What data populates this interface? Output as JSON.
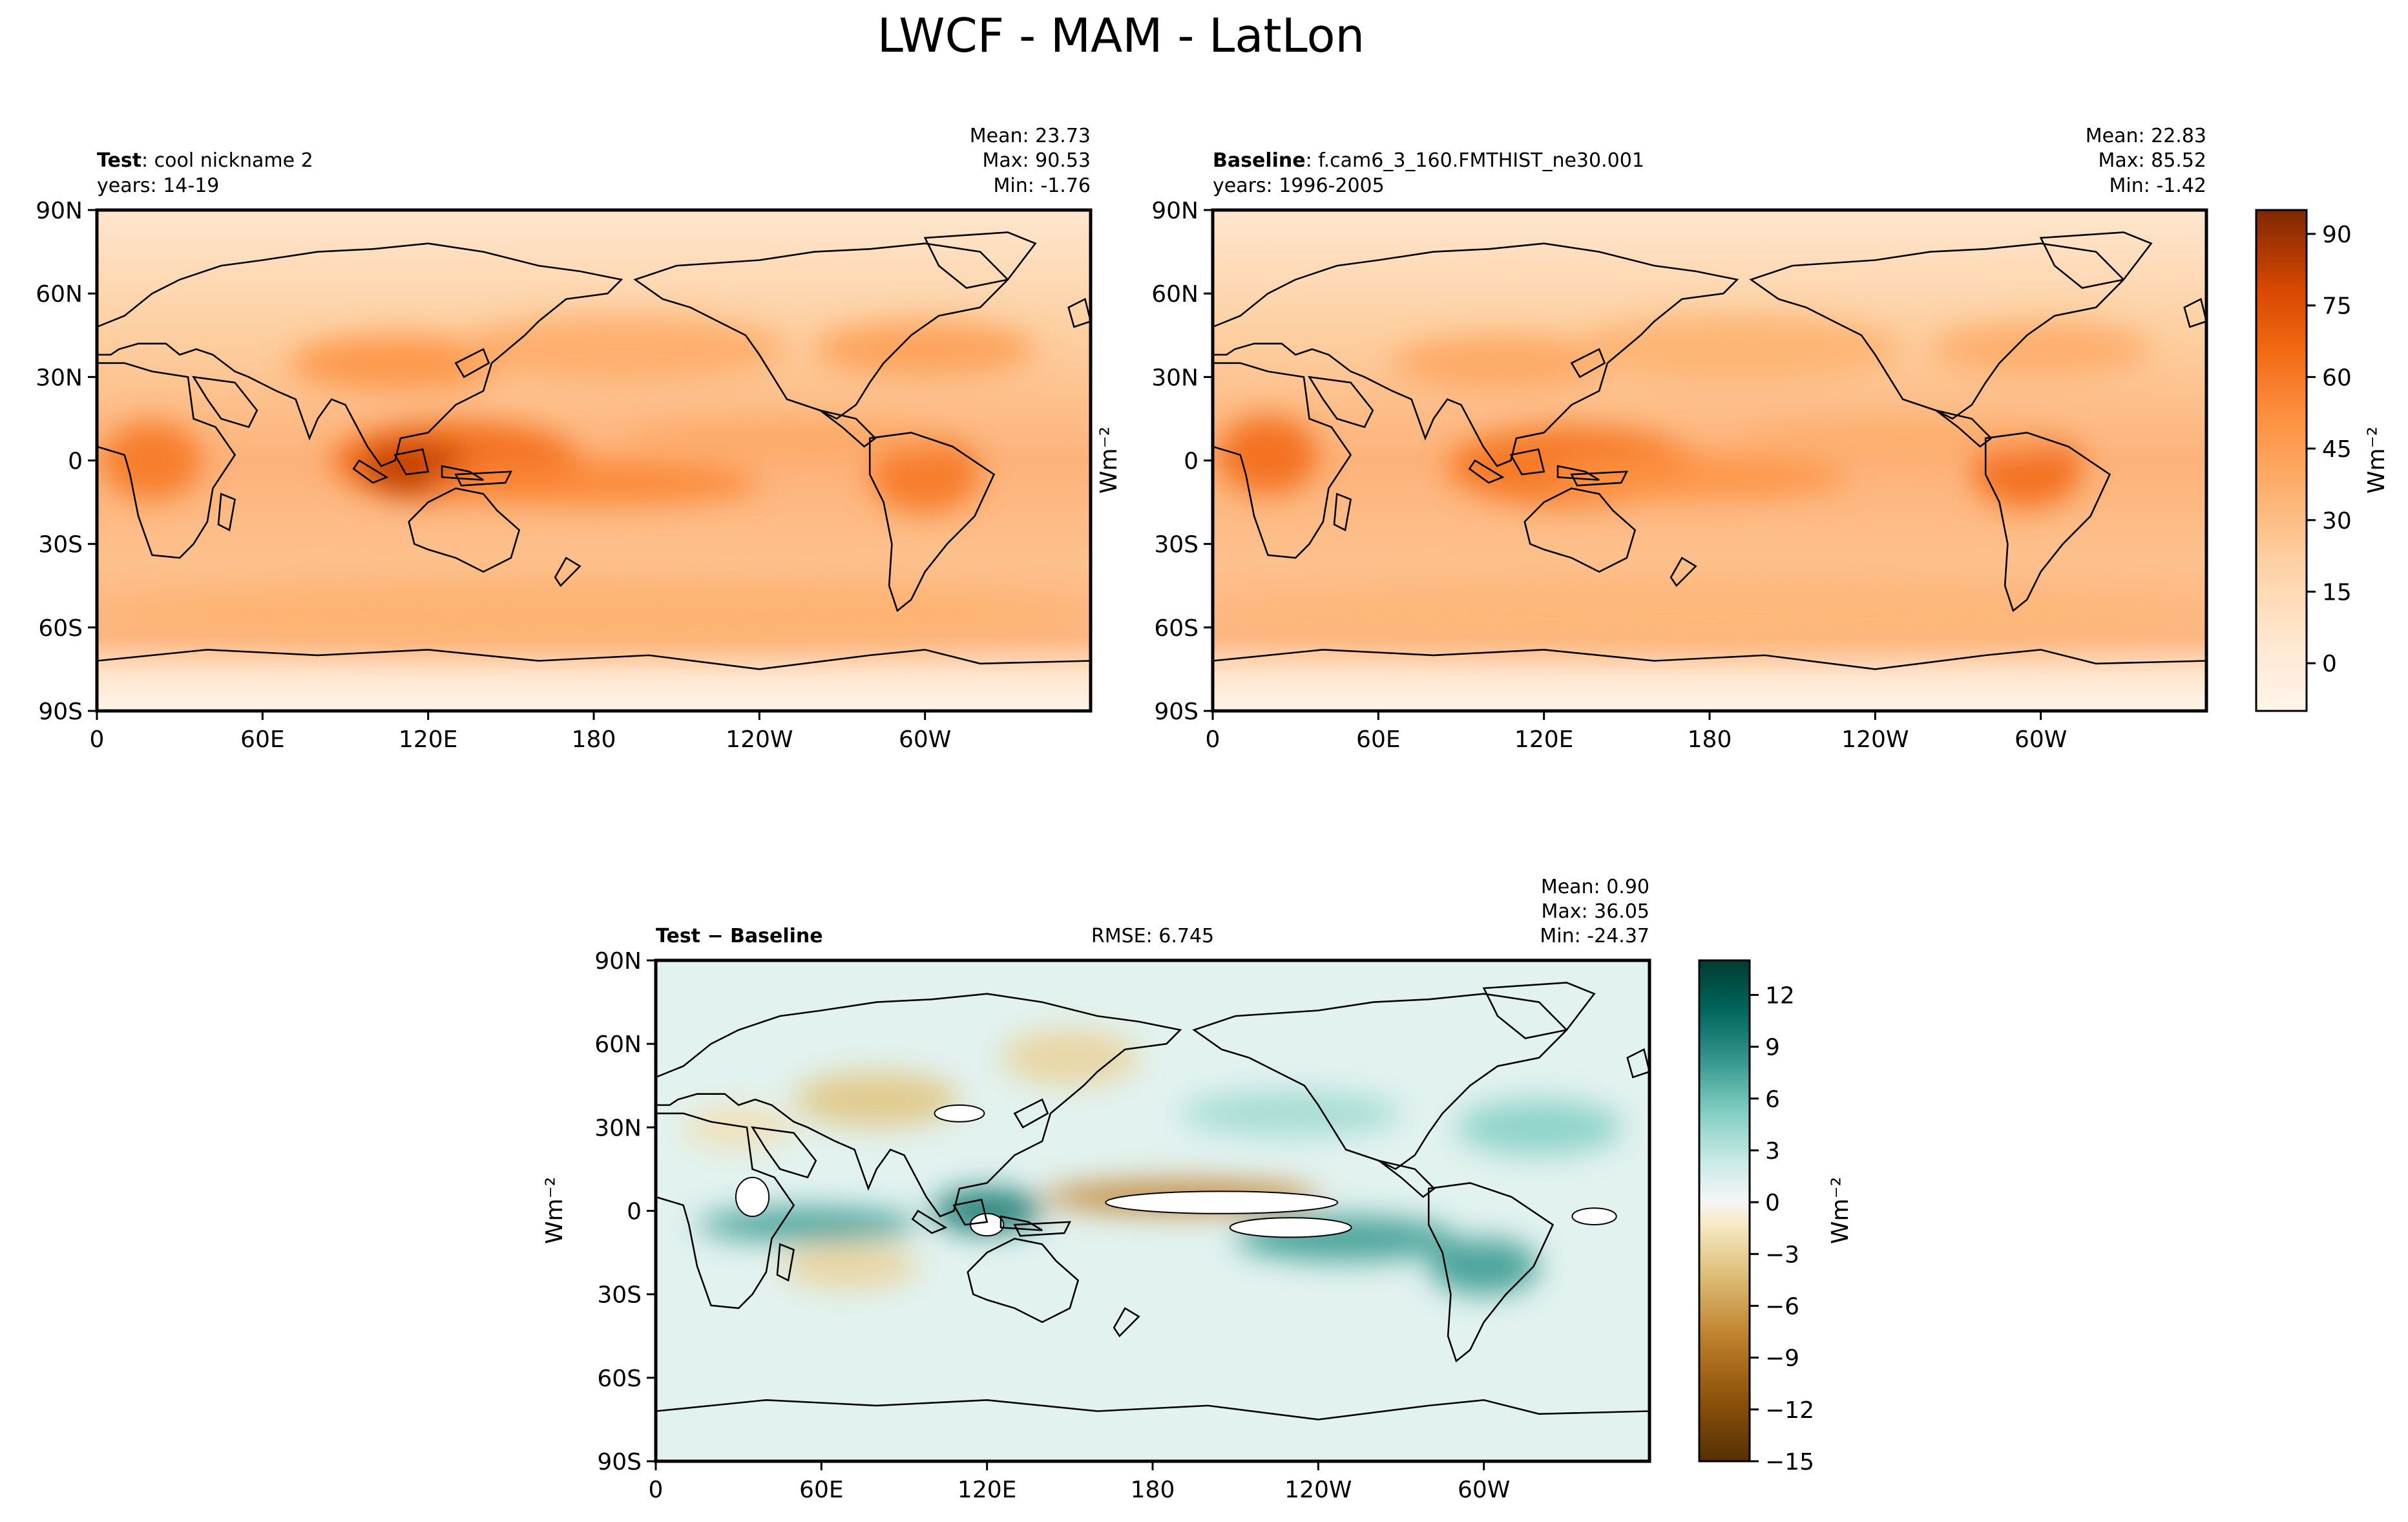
{
  "figure": {
    "title": "LWCF - MAM - LatLon"
  },
  "colors": {
    "orange_scale": [
      "#fff5eb",
      "#fee6ce",
      "#fdd0a2",
      "#fdae6b",
      "#fd8d3c",
      "#f16913",
      "#d94801",
      "#a63603",
      "#7f2704"
    ],
    "brbg_scale": [
      "#543005",
      "#8c510a",
      "#bf812d",
      "#dfc27d",
      "#f6e8c3",
      "#f5f5f5",
      "#c7eae5",
      "#80cdc1",
      "#35978f",
      "#01665e",
      "#003c30"
    ],
    "land_outline": "#000000",
    "frame": "#000000"
  },
  "chart_data": [
    {
      "type": "heatmap",
      "panel": "test",
      "label_bold": "Test",
      "label_rest": ": cool nickname 2",
      "years": "years: 14-19",
      "stats": {
        "mean": "Mean: 23.73",
        "max": "Max: 90.53",
        "min": "Min: -1.76"
      },
      "x_ticks": [
        "0",
        "60E",
        "120E",
        "180",
        "120W",
        "60W"
      ],
      "y_ticks": [
        "90N",
        "60N",
        "30N",
        "0",
        "30S",
        "60S",
        "90S"
      ],
      "xlim": [
        0,
        360
      ],
      "ylim": [
        -90,
        90
      ],
      "features": [
        {
          "lon": 130,
          "lat": 0,
          "w": 45,
          "h": 14,
          "v": 55
        },
        {
          "lon": 115,
          "lat": -3,
          "w": 20,
          "h": 10,
          "v": 75
        },
        {
          "lon": 20,
          "lat": 0,
          "w": 18,
          "h": 14,
          "v": 50
        },
        {
          "lon": 300,
          "lat": -5,
          "w": 20,
          "h": 14,
          "v": 50
        },
        {
          "lon": 180,
          "lat": -8,
          "w": 60,
          "h": 8,
          "v": 45
        },
        {
          "lon": 110,
          "lat": 35,
          "w": 40,
          "h": 10,
          "v": 40
        },
        {
          "lon": 300,
          "lat": 40,
          "w": 40,
          "h": 10,
          "v": 35
        },
        {
          "lon": 190,
          "lat": 40,
          "w": 60,
          "h": 12,
          "v": 30
        },
        {
          "lon": 180,
          "lat": -55,
          "w": 180,
          "h": 12,
          "v": 28
        },
        {
          "lon": 250,
          "lat": 8,
          "w": 60,
          "h": 6,
          "v": 32
        }
      ]
    },
    {
      "type": "heatmap",
      "panel": "baseline",
      "label_bold": "Baseline",
      "label_rest": ": f.cam6_3_160.FMTHIST_ne30.001",
      "years": "years: 1996-2005",
      "stats": {
        "mean": "Mean: 22.83",
        "max": "Max: 85.52",
        "min": "Min: -1.42"
      },
      "x_ticks": [
        "0",
        "60E",
        "120E",
        "180",
        "120W",
        "60W"
      ],
      "y_ticks": [
        "90N",
        "60N",
        "30N",
        "0",
        "30S",
        "60S",
        "90S"
      ],
      "xlim": [
        0,
        360
      ],
      "ylim": [
        -90,
        90
      ],
      "features": [
        {
          "lon": 130,
          "lat": -2,
          "w": 45,
          "h": 14,
          "v": 52
        },
        {
          "lon": 20,
          "lat": 2,
          "w": 18,
          "h": 14,
          "v": 55
        },
        {
          "lon": 295,
          "lat": -3,
          "w": 20,
          "h": 14,
          "v": 55
        },
        {
          "lon": 175,
          "lat": -6,
          "w": 55,
          "h": 8,
          "v": 40
        },
        {
          "lon": 105,
          "lat": 35,
          "w": 40,
          "h": 10,
          "v": 32
        },
        {
          "lon": 300,
          "lat": 40,
          "w": 40,
          "h": 10,
          "v": 30
        },
        {
          "lon": 190,
          "lat": 40,
          "w": 60,
          "h": 12,
          "v": 28
        },
        {
          "lon": 180,
          "lat": -55,
          "w": 180,
          "h": 12,
          "v": 26
        },
        {
          "lon": 250,
          "lat": 8,
          "w": 60,
          "h": 6,
          "v": 30
        }
      ]
    },
    {
      "type": "heatmap",
      "panel": "diff",
      "label_bold": "Test − Baseline",
      "rmse": "RMSE: 6.745",
      "stats": {
        "mean": "Mean:  0.90",
        "max": "Max: 36.05",
        "min": "Min: -24.37"
      },
      "x_ticks": [
        "0",
        "60E",
        "120E",
        "180",
        "120W",
        "60W"
      ],
      "y_ticks": [
        "90N",
        "60N",
        "30N",
        "0",
        "30S",
        "60S",
        "90S"
      ],
      "xlim": [
        0,
        360
      ],
      "ylim": [
        -90,
        90
      ],
      "features": [
        {
          "lon": 55,
          "lat": -5,
          "w": 40,
          "h": 6,
          "v": 8
        },
        {
          "lon": 120,
          "lat": 0,
          "w": 20,
          "h": 8,
          "v": 10
        },
        {
          "lon": 250,
          "lat": -10,
          "w": 40,
          "h": 8,
          "v": 8
        },
        {
          "lon": 190,
          "lat": 5,
          "w": 50,
          "h": 6,
          "v": -9
        },
        {
          "lon": 300,
          "lat": -20,
          "w": 20,
          "h": 10,
          "v": 8
        },
        {
          "lon": 80,
          "lat": 40,
          "w": 30,
          "h": 10,
          "v": -6
        },
        {
          "lon": 150,
          "lat": 55,
          "w": 25,
          "h": 10,
          "v": -5
        },
        {
          "lon": 70,
          "lat": -20,
          "w": 25,
          "h": 8,
          "v": -5
        },
        {
          "lon": 320,
          "lat": 30,
          "w": 30,
          "h": 10,
          "v": 5
        },
        {
          "lon": 230,
          "lat": 35,
          "w": 40,
          "h": 8,
          "v": 4
        },
        {
          "lon": 30,
          "lat": 30,
          "w": 20,
          "h": 8,
          "v": -4
        }
      ],
      "saturated": [
        {
          "lon": 110,
          "lat": 35,
          "w": 9,
          "h": 3,
          "color": "#ffffff"
        },
        {
          "lon": 120,
          "lat": -5,
          "w": 6,
          "h": 4,
          "color": "#ffffff"
        },
        {
          "lon": 35,
          "lat": 5,
          "w": 6,
          "h": 7,
          "color": "#ffffff"
        },
        {
          "lon": 205,
          "lat": 3,
          "w": 42,
          "h": 4,
          "color": "#ffffff"
        },
        {
          "lon": 230,
          "lat": -6,
          "w": 22,
          "h": 3.5,
          "color": "#ffffff"
        },
        {
          "lon": 340,
          "lat": -2,
          "w": 8,
          "h": 3,
          "color": "#ffffff"
        }
      ]
    }
  ],
  "colorbars": [
    {
      "panel": "orange",
      "label": "Wm⁻²",
      "min": -10,
      "max": 95,
      "ticks": [
        {
          "v": 0,
          "label": "0"
        },
        {
          "v": 15,
          "label": "15"
        },
        {
          "v": 30,
          "label": "30"
        },
        {
          "v": 45,
          "label": "45"
        },
        {
          "v": 60,
          "label": "60"
        },
        {
          "v": 75,
          "label": "75"
        },
        {
          "v": 90,
          "label": "90"
        }
      ]
    },
    {
      "panel": "diff",
      "label": "Wm⁻²",
      "min": -15,
      "max": 14,
      "ticks": [
        {
          "v": -15,
          "label": "−15"
        },
        {
          "v": -12,
          "label": "−12"
        },
        {
          "v": -9,
          "label": "−9"
        },
        {
          "v": -6,
          "label": "−6"
        },
        {
          "v": -3,
          "label": "−3"
        },
        {
          "v": 0,
          "label": "0"
        },
        {
          "v": 3,
          "label": "3"
        },
        {
          "v": 6,
          "label": "6"
        },
        {
          "v": 9,
          "label": "9"
        },
        {
          "v": 12,
          "label": "12"
        }
      ]
    }
  ],
  "side_labels": {
    "ylabel_mid": "Wm⁻²",
    "ylabel_diff": "Wm⁻²"
  }
}
